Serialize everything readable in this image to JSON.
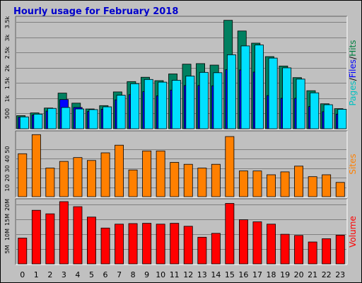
{
  "chart_data": {
    "type": "bar",
    "title": "Hourly usage for February 2018",
    "categories": [
      "0",
      "1",
      "2",
      "3",
      "4",
      "5",
      "6",
      "7",
      "8",
      "9",
      "10",
      "11",
      "12",
      "13",
      "14",
      "15",
      "16",
      "17",
      "18",
      "19",
      "20",
      "21",
      "22",
      "23"
    ],
    "panels": [
      {
        "id": "hits-files-pages",
        "ylim": [
          0,
          3600
        ],
        "yticks": [
          500,
          1000,
          1500,
          2000,
          2500,
          3000,
          3500
        ],
        "ytick_labels": [
          "500",
          "1k",
          "1.5k",
          "2k",
          "2.5k",
          "3k",
          "3.5k"
        ],
        "side_label_parts": [
          {
            "text": "Pages",
            "color": "#00c0c0"
          },
          {
            "text": "/",
            "color": "#000000"
          },
          {
            "text": "Files",
            "color": "#0000ff"
          },
          {
            "text": "/",
            "color": "#000000"
          },
          {
            "text": "Hits",
            "color": "#008040"
          }
        ],
        "series": [
          {
            "name": "Hits",
            "color": "#008060",
            "values": [
              430,
              520,
              680,
              1170,
              840,
              650,
              760,
              1210,
              1550,
              1690,
              1580,
              1800,
              2120,
              2140,
              2090,
              3560,
              3210,
              2810,
              2370,
              2060,
              1680,
              1250,
              820,
              660
            ]
          },
          {
            "name": "Files",
            "color": "#0000ff",
            "values": [
              380,
              450,
              580,
              960,
              700,
              570,
              640,
              950,
              1120,
              1220,
              1080,
              1270,
              1420,
              1420,
              1410,
              1940,
              1930,
              1860,
              1090,
              1000,
              1000,
              730,
              560,
              480
            ]
          },
          {
            "name": "Pages",
            "color": "#00e0ff",
            "values": [
              390,
              480,
              670,
              700,
              650,
              630,
              720,
              1100,
              1480,
              1620,
              1530,
              1590,
              1730,
              1850,
              1840,
              2430,
              2720,
              2750,
              2320,
              2000,
              1630,
              1180,
              790,
              640
            ]
          }
        ]
      },
      {
        "id": "sites",
        "ylim": [
          0,
          66
        ],
        "yticks": [
          10,
          20,
          30,
          40,
          50
        ],
        "ytick_labels": [
          "10",
          "20",
          "30",
          "40",
          "50"
        ],
        "side_label_parts": [
          {
            "text": "Sites",
            "color": "#ff8000"
          }
        ],
        "series": [
          {
            "name": "Sites",
            "color": "#ff8000",
            "values": [
              45,
              65,
              30,
              37,
              41,
              38,
              46,
              54,
              28,
              48,
              48,
              36,
              34,
              30,
              34,
              63,
              27,
              27,
              23,
              26,
              32,
              21,
              23,
              15
            ]
          }
        ]
      },
      {
        "id": "volume",
        "ylim": [
          0,
          21
        ],
        "yticks": [
          5,
          10,
          15,
          20
        ],
        "ytick_labels": [
          "5M",
          "10M",
          "15M",
          "20M"
        ],
        "side_label_parts": [
          {
            "text": "Volume",
            "color": "#ff0000"
          }
        ],
        "series": [
          {
            "name": "Volume",
            "color": "#ff0000",
            "values": [
              8.7,
              18.1,
              16.9,
              21.0,
              19.3,
              15.8,
              12.1,
              13.4,
              13.6,
              13.7,
              13.4,
              13.7,
              12.7,
              9.0,
              10.3,
              20.4,
              14.9,
              14.2,
              13.4,
              10.0,
              9.6,
              7.4,
              8.5,
              9.7
            ]
          }
        ]
      }
    ]
  }
}
